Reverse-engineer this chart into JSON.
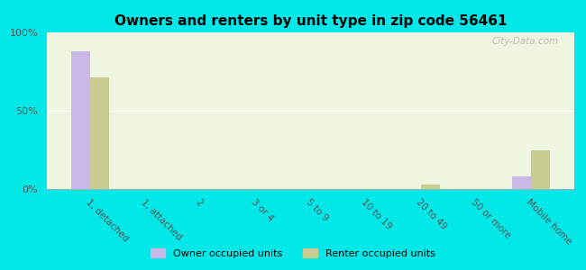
{
  "title": "Owners and renters by unit type in zip code 56461",
  "categories": [
    "1, detached",
    "1, attached",
    "2",
    "3 or 4",
    "5 to 9",
    "10 to 19",
    "20 to 49",
    "50 or more",
    "Mobile home"
  ],
  "owner_values": [
    88,
    0,
    0,
    0,
    0,
    0,
    0,
    0,
    8
  ],
  "renter_values": [
    71,
    0,
    0,
    0,
    0,
    0,
    3,
    0,
    25
  ],
  "owner_color": "#c9b8e8",
  "renter_color": "#c8cc90",
  "background_color": "#eef5e0",
  "outer_background": "#00e8e8",
  "ylim": [
    0,
    100
  ],
  "yticks": [
    0,
    50,
    100
  ],
  "ytick_labels": [
    "0%",
    "50%",
    "100%"
  ],
  "bar_width": 0.35,
  "legend_owner": "Owner occupied units",
  "legend_renter": "Renter occupied units",
  "watermark": "City-Data.com"
}
